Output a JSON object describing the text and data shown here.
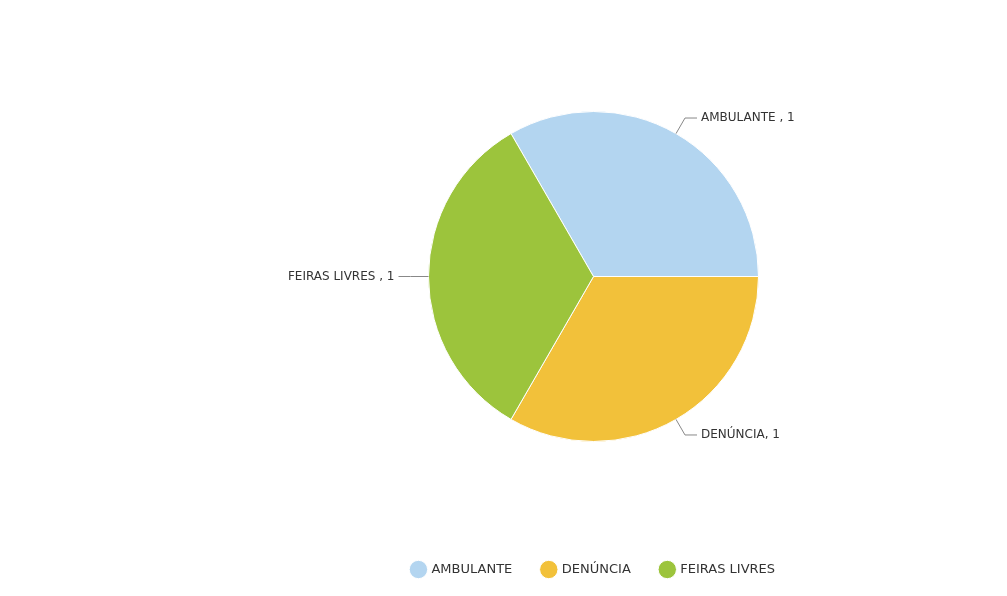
{
  "chart_data": {
    "type": "pie",
    "categories": [
      "AMBULANTE",
      "DENÚNCIA",
      "FEIRAS LIVRES"
    ],
    "values": [
      1,
      1,
      1
    ],
    "colors": [
      "#b3d5f0",
      "#f2c13a",
      "#9cc43c"
    ],
    "value_labels": [
      "AMBULANTE , 1",
      "DENÚNCIA, 1",
      "FEIRAS LIVRES , 1"
    ],
    "legend": "bottom"
  }
}
